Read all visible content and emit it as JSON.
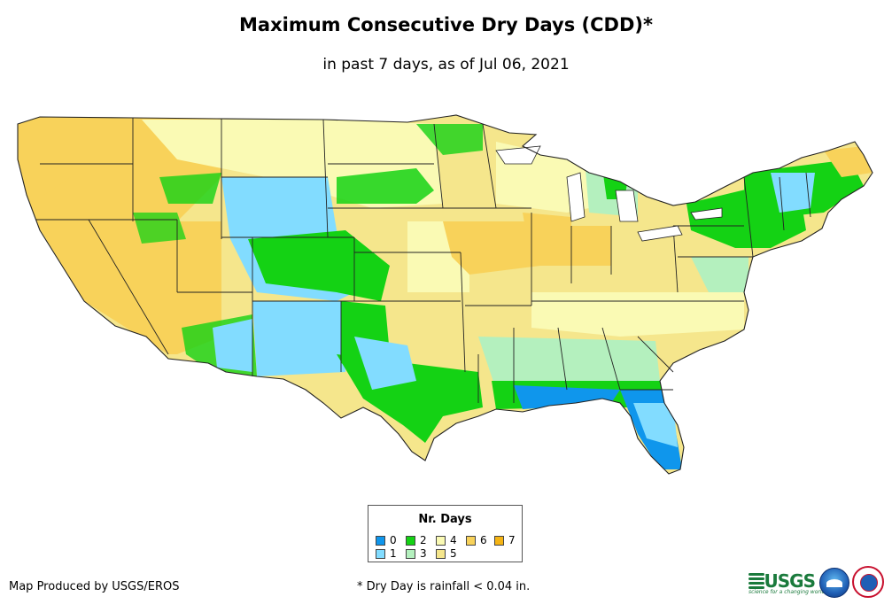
{
  "title": "Maximum Consecutive Dry Days (CDD)*",
  "subtitle": "in past 7 days, as of Jul 06, 2021",
  "legend": {
    "title": "Nr. Days",
    "items": [
      {
        "label": "0",
        "color": "#0f96ec"
      },
      {
        "label": "1",
        "color": "#82dcff"
      },
      {
        "label": "2",
        "color": "#14d214"
      },
      {
        "label": "3",
        "color": "#b4f0be"
      },
      {
        "label": "4",
        "color": "#fafab4"
      },
      {
        "label": "5",
        "color": "#f5e68c"
      },
      {
        "label": "6",
        "color": "#f8d25a"
      },
      {
        "label": "7",
        "color": "#f5b414"
      }
    ]
  },
  "footer": {
    "credit": "Map Produced by USGS/EROS",
    "note": "* Dry Day is rainfall < 0.04 in."
  },
  "logos": {
    "usgs": "USGS",
    "usgs_tagline": "science for a changing world",
    "noaa": "noaa"
  }
}
